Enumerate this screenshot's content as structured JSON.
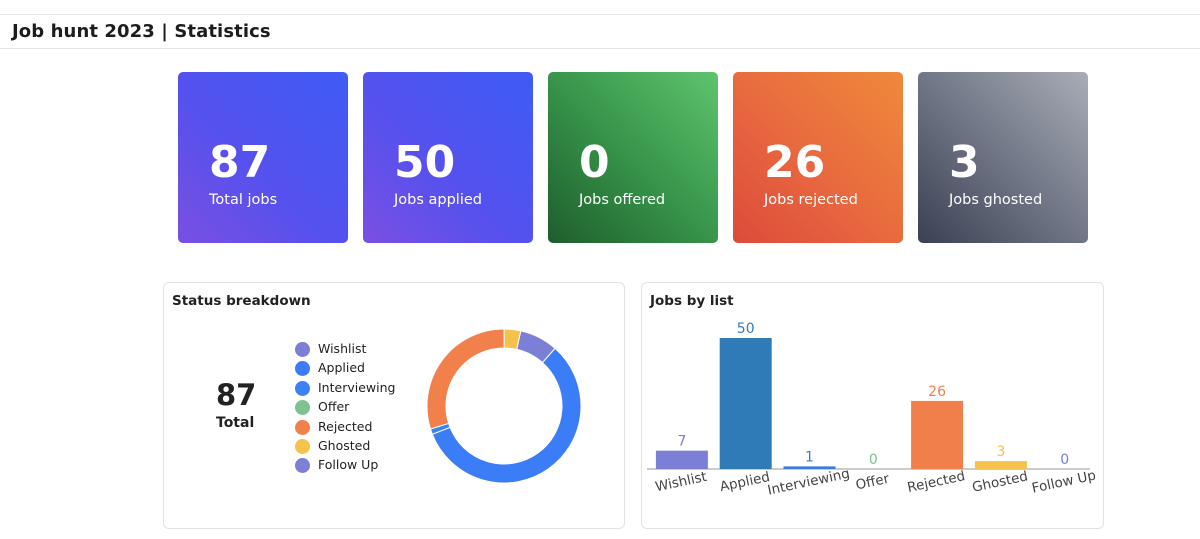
{
  "header": {
    "title": "Job hunt 2023 | Statistics"
  },
  "cards": [
    {
      "id": "total",
      "value": "87",
      "label": "Total jobs"
    },
    {
      "id": "applied",
      "value": "50",
      "label": "Jobs applied"
    },
    {
      "id": "offered",
      "value": "0",
      "label": "Jobs offered"
    },
    {
      "id": "rejected",
      "value": "26",
      "label": "Jobs rejected"
    },
    {
      "id": "ghosted",
      "value": "3",
      "label": "Jobs ghosted"
    }
  ],
  "status_panel": {
    "title": "Status breakdown",
    "total_value": "87",
    "total_label": "Total",
    "legend": [
      {
        "label": "Wishlist",
        "color": "#7b7fd6"
      },
      {
        "label": "Applied",
        "color": "#3b7df6"
      },
      {
        "label": "Interviewing",
        "color": "#3b82f6"
      },
      {
        "label": "Offer",
        "color": "#7dc28f"
      },
      {
        "label": "Rejected",
        "color": "#f2804a"
      },
      {
        "label": "Ghosted",
        "color": "#f5c24c"
      },
      {
        "label": "Follow Up",
        "color": "#7b7fd6"
      }
    ]
  },
  "list_panel": {
    "title": "Jobs by list"
  },
  "chart_data": [
    {
      "type": "pie",
      "title": "Status breakdown",
      "categories": [
        "Wishlist",
        "Applied",
        "Interviewing",
        "Offer",
        "Rejected",
        "Ghosted",
        "Follow Up"
      ],
      "values": [
        7,
        50,
        1,
        0,
        26,
        3,
        0
      ],
      "colors": [
        "#7b7fd6",
        "#3b7df6",
        "#3b82f6",
        "#7dc28f",
        "#f2804a",
        "#f5c24c",
        "#7b7fd6"
      ],
      "legend": "left"
    },
    {
      "type": "bar",
      "title": "Jobs by list",
      "categories": [
        "Wishlist",
        "Applied",
        "Interviewing",
        "Offer",
        "Rejected",
        "Ghosted",
        "Follow Up"
      ],
      "values": [
        7,
        50,
        1,
        0,
        26,
        3,
        0
      ],
      "colors": [
        "#7b7fd6",
        "#2f7bb8",
        "#3b7dd8",
        "#7dc28f",
        "#f07f4c",
        "#f5c24c",
        "#7b7fd6"
      ],
      "ylim": [
        0,
        50
      ],
      "grid": false
    }
  ]
}
